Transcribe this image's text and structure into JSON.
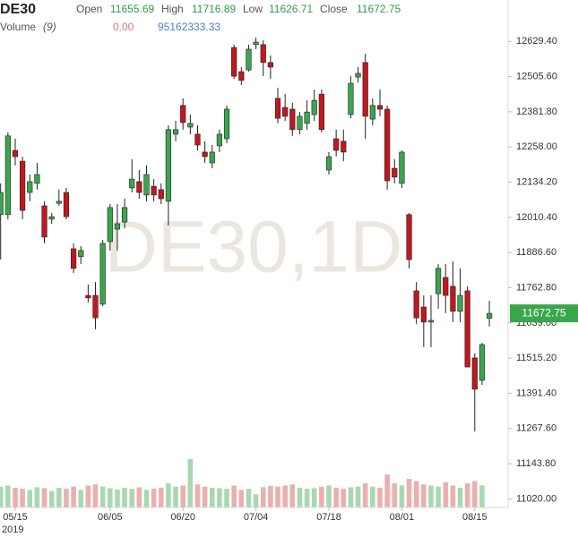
{
  "chart_data": {
    "type": "candlestick",
    "title": "DE30",
    "watermark": "DE30,1D",
    "year_label": "2019",
    "header": {
      "open_label": "Open",
      "high_label": "High",
      "low_label": "Low",
      "close_label": "Close",
      "volume_label": "Volume",
      "volume_period": "(9)",
      "volume_value": "0.00",
      "volume_average": "95162333.33"
    },
    "up_color": "#3aa64c",
    "down_color": "#c3171f",
    "volume_up_color": "#a9d8b0",
    "volume_down_color": "#eab0b0",
    "categories": [
      null,
      null,
      "05/15",
      null,
      null,
      null,
      null,
      null,
      null,
      null,
      null,
      null,
      null,
      null,
      null,
      "06/05",
      null,
      null,
      null,
      null,
      null,
      null,
      null,
      null,
      null,
      "06/20",
      null,
      null,
      null,
      null,
      null,
      null,
      null,
      null,
      null,
      "07/04",
      null,
      null,
      null,
      null,
      null,
      null,
      null,
      null,
      null,
      "07/18",
      null,
      null,
      null,
      null,
      null,
      null,
      null,
      null,
      null,
      "08/01",
      null,
      null,
      null,
      null,
      null,
      null,
      null,
      null,
      null,
      "08/15",
      null,
      null
    ],
    "open": [
      12020,
      12020,
      12246,
      12208,
      12098,
      12130,
      12051,
      12004,
      12060,
      12098,
      11900,
      11872,
      11736,
      11736,
      11705,
      11925,
      11969,
      11994,
      12114,
      12136,
      12089,
      12120,
      12108,
      12067,
      12303,
      12404,
      12328,
      12303,
      12240,
      12202,
      12262,
      12287,
      12608,
      12523,
      12529,
      12618,
      12618,
      12555,
      12429,
      12397,
      12391,
      12319,
      12341,
      12372,
      12444,
      12177,
      12287,
      12278,
      12372,
      12504,
      12555,
      12356,
      12404,
      12391,
      12183,
      12130,
      12020,
      11752,
      11695,
      11642,
      11742,
      11799,
      11768,
      11680,
      11752,
      11516,
      11437,
      11655.69
    ],
    "high": [
      12130,
      12309,
      12287,
      12224,
      12161,
      12202,
      12067,
      12026,
      12108,
      12114,
      11919,
      11909,
      11774,
      11783,
      11931,
      12057,
      12057,
      12076,
      12215,
      12177,
      12193,
      12145,
      12130,
      12334,
      12350,
      12429,
      12372,
      12334,
      12278,
      12265,
      12319,
      12404,
      12618,
      12539,
      12618,
      12643,
      12633,
      12580,
      12466,
      12444,
      12413,
      12381,
      12422,
      12460,
      12460,
      12240,
      12319,
      12319,
      12507,
      12539,
      12586,
      12429,
      12460,
      12404,
      12215,
      12246,
      12026,
      11783,
      11736,
      11736,
      11846,
      11846,
      11856,
      11831,
      11768,
      11532,
      11569,
      11716.89
    ],
    "low": [
      11862,
      12004,
      12193,
      12004,
      12067,
      12108,
      11919,
      11988,
      12051,
      12004,
      11815,
      11846,
      11711,
      11617,
      11698,
      11894,
      11894,
      11972,
      12098,
      12076,
      12067,
      12067,
      12057,
      11982,
      12278,
      12319,
      12303,
      12246,
      12202,
      12183,
      12240,
      12271,
      12498,
      12476,
      12523,
      12602,
      12507,
      12498,
      12341,
      12350,
      12297,
      12303,
      12319,
      12350,
      12309,
      12161,
      12224,
      12208,
      12359,
      12485,
      12287,
      12334,
      12366,
      12108,
      12130,
      12114,
      11831,
      11635,
      11554,
      11554,
      11689,
      11674,
      11642,
      11642,
      11484,
      11258,
      11421,
      11626.71
    ],
    "close": [
      12098,
      12297,
      12224,
      12035,
      12136,
      12161,
      11941,
      12013,
      12067,
      12013,
      11831,
      11894,
      11727,
      11657,
      11919,
      12045,
      11988,
      12045,
      12145,
      12098,
      12161,
      12089,
      12076,
      12319,
      12319,
      12344,
      12341,
      12265,
      12224,
      12240,
      12303,
      12391,
      12507,
      12492,
      12602,
      12627,
      12555,
      12539,
      12359,
      12366,
      12319,
      12366,
      12381,
      12422,
      12319,
      12224,
      12246,
      12240,
      12482,
      12517,
      12366,
      12404,
      12391,
      12139,
      12152,
      12240,
      11862,
      11657,
      11642,
      11648,
      11831,
      11736,
      11680,
      11736,
      11484,
      11406,
      11563,
      11672.75
    ],
    "volume": [
      95000000,
      100000000,
      90000000,
      85000000,
      80000000,
      92000000,
      88000000,
      75000000,
      90000000,
      85000000,
      95000000,
      80000000,
      100000000,
      105000000,
      95000000,
      88000000,
      82000000,
      90000000,
      85000000,
      92000000,
      80000000,
      86000000,
      90000000,
      110000000,
      95000000,
      100000000,
      220000000,
      105000000,
      95000000,
      90000000,
      88000000,
      85000000,
      100000000,
      80000000,
      85000000,
      60000000,
      92000000,
      98000000,
      95000000,
      100000000,
      105000000,
      90000000,
      85000000,
      88000000,
      95000000,
      100000000,
      90000000,
      85000000,
      92000000,
      95000000,
      110000000,
      95000000,
      90000000,
      150000000,
      110000000,
      100000000,
      130000000,
      120000000,
      105000000,
      100000000,
      95000000,
      115000000,
      100000000,
      90000000,
      110000000,
      120000000,
      100000000,
      0
    ],
    "ylim": [
      10990,
      12775
    ],
    "yticks": [
      {
        "value": 12629.4,
        "label": "12629.40"
      },
      {
        "value": 12505.6,
        "label": "12505.60"
      },
      {
        "value": 12381.8,
        "label": "12381.80"
      },
      {
        "value": 12258,
        "label": "12258.00"
      },
      {
        "value": 12134.2,
        "label": "12134.20"
      },
      {
        "value": 12010.4,
        "label": "12010.40"
      },
      {
        "value": 11886.6,
        "label": "11886.60"
      },
      {
        "value": 11762.8,
        "label": "11762.80"
      },
      {
        "value": 11639,
        "label": "11639.00"
      },
      {
        "value": 11515.2,
        "label": "11515.20"
      },
      {
        "value": 11391.4,
        "label": "11391.40"
      },
      {
        "value": 11267.6,
        "label": "11267.60"
      },
      {
        "value": 11143.8,
        "label": "11143.80"
      },
      {
        "value": 11020,
        "label": "11020.00"
      }
    ]
  }
}
